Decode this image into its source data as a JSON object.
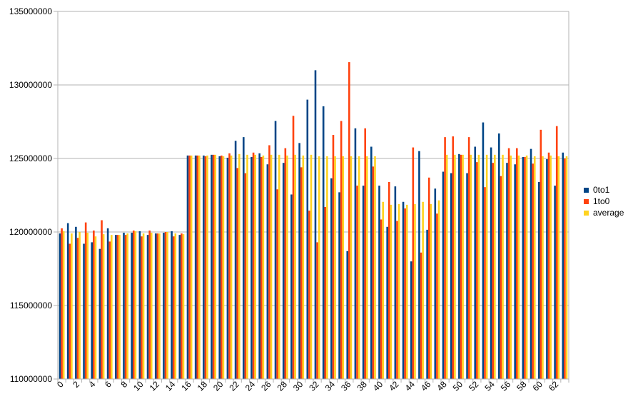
{
  "colors": {
    "series0": "#004586",
    "series1": "#ff420e",
    "series2": "#ffd320",
    "grid": "#b3b3b3",
    "axis": "#b3b3b3"
  },
  "chart_data": {
    "type": "bar",
    "title": "",
    "xlabel": "",
    "ylabel": "",
    "ylim": [
      110000000,
      135000000
    ],
    "yticks": [
      "110000000",
      "115000000",
      "120000000",
      "125000000",
      "130000000",
      "135000000"
    ],
    "xtick_labels": [
      "0",
      "2",
      "4",
      "6",
      "8",
      "10",
      "12",
      "14",
      "16",
      "18",
      "20",
      "22",
      "24",
      "26",
      "28",
      "30",
      "32",
      "34",
      "36",
      "38",
      "40",
      "42",
      "44",
      "46",
      "48",
      "50",
      "52",
      "54",
      "56",
      "58",
      "60",
      "62"
    ],
    "grid": true,
    "legend_position": "right",
    "categories": [
      0,
      1,
      2,
      3,
      4,
      5,
      6,
      7,
      8,
      9,
      10,
      11,
      12,
      13,
      14,
      15,
      16,
      17,
      18,
      19,
      20,
      21,
      22,
      23,
      24,
      25,
      26,
      27,
      28,
      29,
      30,
      31,
      32,
      33,
      34,
      35,
      36,
      37,
      38,
      39,
      40,
      41,
      42,
      43,
      44,
      45,
      46,
      47,
      48,
      49,
      50,
      51,
      52,
      53,
      54,
      55,
      56,
      57,
      58,
      59,
      60,
      61,
      62,
      63
    ],
    "series": [
      {
        "name": "0to1",
        "values": [
          119900000,
          120600000,
          120350000,
          119200000,
          119300000,
          118850000,
          120250000,
          119800000,
          119950000,
          119950000,
          120050000,
          119800000,
          119900000,
          119950000,
          120050000,
          119800000,
          125200000,
          125200000,
          125200000,
          125250000,
          125150000,
          125050000,
          126200000,
          126450000,
          125100000,
          125350000,
          124600000,
          127550000,
          124700000,
          122550000,
          126050000,
          129000000,
          131000000,
          128550000,
          123650000,
          122700000,
          118700000,
          127050000,
          123150000,
          125800000,
          123150000,
          120350000,
          123100000,
          122050000,
          118000000,
          125500000,
          120150000,
          122950000,
          124100000,
          124000000,
          125300000,
          124000000,
          125800000,
          127450000,
          125750000,
          126700000,
          124700000,
          124600000,
          125100000,
          125650000,
          123400000,
          124950000,
          123150000,
          125400000
        ]
      },
      {
        "name": "1to0",
        "values": [
          120250000,
          119200000,
          119600000,
          120650000,
          120100000,
          120800000,
          119350000,
          119800000,
          119800000,
          120100000,
          119700000,
          120100000,
          119900000,
          120000000,
          119700000,
          119900000,
          125200000,
          125200000,
          125150000,
          125250000,
          125200000,
          125350000,
          124350000,
          124000000,
          125400000,
          125100000,
          125900000,
          122900000,
          125700000,
          127900000,
          124400000,
          121450000,
          119300000,
          121700000,
          126600000,
          127550000,
          131550000,
          123150000,
          127050000,
          124450000,
          120850000,
          123400000,
          120750000,
          121600000,
          125750000,
          118600000,
          123700000,
          121250000,
          126450000,
          126500000,
          125250000,
          126450000,
          124750000,
          123050000,
          124700000,
          123800000,
          125700000,
          125700000,
          125100000,
          124650000,
          126950000,
          125400000,
          127200000,
          125000000
        ]
      },
      {
        "name": "average",
        "values": [
          120050000,
          119900000,
          120000000,
          119950000,
          119700000,
          119850000,
          119800000,
          119800000,
          119900000,
          120050000,
          119900000,
          119950000,
          119900000,
          120000000,
          119900000,
          119850000,
          125200000,
          125200000,
          125200000,
          125250000,
          125150000,
          125200000,
          125300000,
          125250000,
          125250000,
          125200000,
          125250000,
          125250000,
          125200000,
          125250000,
          125200000,
          125250000,
          125150000,
          125150000,
          125150000,
          125150000,
          125150000,
          125150000,
          125150000,
          125150000,
          122050000,
          121850000,
          121900000,
          121850000,
          121900000,
          122050000,
          121900000,
          122150000,
          125250000,
          125250000,
          125250000,
          125250000,
          125250000,
          125250000,
          125250000,
          125250000,
          125200000,
          125200000,
          125200000,
          125150000,
          125150000,
          125200000,
          125150000,
          125150000
        ]
      }
    ]
  }
}
